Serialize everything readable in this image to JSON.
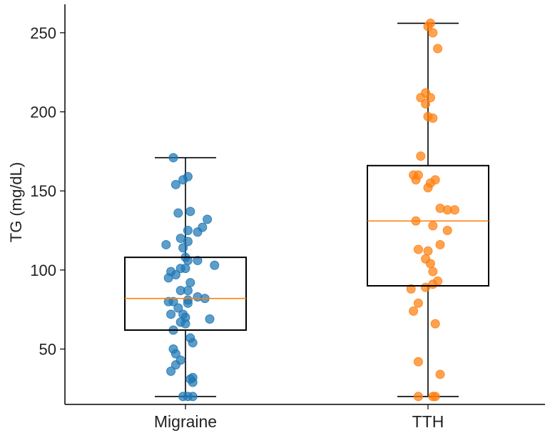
{
  "chart_data": {
    "type": "box",
    "title": "",
    "xlabel": "",
    "ylabel": "TG (mg/dL)",
    "ylim": [
      15,
      268
    ],
    "yticks": [
      50,
      100,
      150,
      200,
      250
    ],
    "grid": false,
    "categories": [
      "Migraine",
      "TTH"
    ],
    "series": [
      {
        "color": "#1f77b4",
        "box": {
          "whisker_low": 20,
          "q1": 62,
          "median": 82,
          "q3": 108,
          "whisker_high": 171
        },
        "points": [
          [
            -0.05,
            171
          ],
          [
            0.01,
            159
          ],
          [
            -0.01,
            157
          ],
          [
            -0.04,
            154
          ],
          [
            0.02,
            137
          ],
          [
            -0.03,
            136
          ],
          [
            0.09,
            132
          ],
          [
            0.07,
            127
          ],
          [
            0.05,
            124
          ],
          [
            0.01,
            125
          ],
          [
            -0.02,
            120
          ],
          [
            0.01,
            118
          ],
          [
            -0.08,
            116
          ],
          [
            -0.01,
            114
          ],
          [
            0.0,
            108
          ],
          [
            0.01,
            106
          ],
          [
            0.05,
            106
          ],
          [
            0.12,
            103
          ],
          [
            0.0,
            101
          ],
          [
            -0.02,
            101
          ],
          [
            -0.06,
            99
          ],
          [
            -0.04,
            97
          ],
          [
            -0.07,
            95
          ],
          [
            0.02,
            92
          ],
          [
            -0.02,
            87
          ],
          [
            0.01,
            87
          ],
          [
            0.05,
            83
          ],
          [
            0.08,
            82
          ],
          [
            0.01,
            81
          ],
          [
            -0.05,
            80
          ],
          [
            -0.07,
            80
          ],
          [
            0.01,
            79
          ],
          [
            -0.03,
            76
          ],
          [
            -0.06,
            72
          ],
          [
            -0.01,
            72
          ],
          [
            0.0,
            70
          ],
          [
            0.1,
            69
          ],
          [
            -0.02,
            67
          ],
          [
            0.0,
            66
          ],
          [
            -0.05,
            62
          ],
          [
            0.02,
            57
          ],
          [
            0.03,
            54
          ],
          [
            -0.05,
            50
          ],
          [
            -0.04,
            47
          ],
          [
            -0.02,
            43
          ],
          [
            -0.04,
            40
          ],
          [
            -0.06,
            36
          ],
          [
            0.03,
            32
          ],
          [
            0.02,
            31
          ],
          [
            0.03,
            29
          ],
          [
            -0.01,
            20
          ],
          [
            0.01,
            20
          ],
          [
            0.03,
            20
          ]
        ]
      },
      {
        "color": "#ff7f0e",
        "box": {
          "whisker_low": 20,
          "q1": 90,
          "median": 131,
          "q3": 166,
          "whisker_high": 256
        },
        "points": [
          [
            0.01,
            256
          ],
          [
            0.0,
            254
          ],
          [
            0.02,
            250
          ],
          [
            0.04,
            240
          ],
          [
            -0.03,
            209
          ],
          [
            -0.01,
            212
          ],
          [
            0.01,
            209
          ],
          [
            -0.01,
            205
          ],
          [
            0.0,
            197
          ],
          [
            0.02,
            196
          ],
          [
            -0.03,
            172
          ],
          [
            -0.06,
            160
          ],
          [
            -0.04,
            160
          ],
          [
            -0.05,
            157
          ],
          [
            0.03,
            157
          ],
          [
            0.01,
            155
          ],
          [
            0.0,
            152
          ],
          [
            0.05,
            139
          ],
          [
            0.08,
            138
          ],
          [
            0.11,
            138
          ],
          [
            -0.05,
            131
          ],
          [
            0.02,
            128
          ],
          [
            0.08,
            125
          ],
          [
            0.05,
            116
          ],
          [
            -0.04,
            113
          ],
          [
            0.0,
            112
          ],
          [
            -0.01,
            107
          ],
          [
            0.01,
            104
          ],
          [
            0.02,
            99
          ],
          [
            0.04,
            93
          ],
          [
            0.02,
            91
          ],
          [
            -0.01,
            89
          ],
          [
            -0.07,
            88
          ],
          [
            -0.04,
            79
          ],
          [
            -0.06,
            74
          ],
          [
            0.03,
            66
          ],
          [
            -0.04,
            42
          ],
          [
            0.05,
            34
          ],
          [
            -0.04,
            20
          ],
          [
            0.02,
            20
          ],
          [
            0.03,
            20
          ]
        ]
      }
    ]
  }
}
